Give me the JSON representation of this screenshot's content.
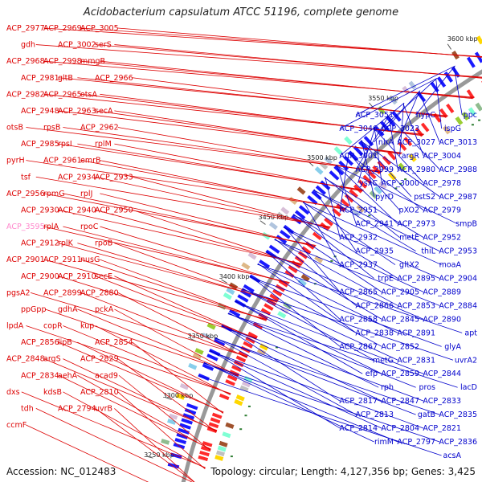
{
  "title": "Acidobacterium capsulatum ATCC 51196, complete genome",
  "accession": "Accession: NC_012483",
  "summary": "Topology: circular; Length: 4,127,356 bp; Genes: 3,425",
  "colors": {
    "left_labels": "#dd0000",
    "right_labels": "#0000cc",
    "forward_genes": "#ff2a2a",
    "reverse_genes": "#1a1aff",
    "backbone": "#999999",
    "highlight_label": "#ff88cc",
    "gc_skew": "#2e7d32"
  },
  "ticks": [
    "3600 kbp",
    "3550 kbp",
    "3500 kbp",
    "3450 kbp",
    "3400 kbp",
    "3350 kbp",
    "3300 kbp",
    "3250 kbp"
  ],
  "left_labels": [
    "ACP_2977",
    "ACP_2969",
    "ACP_3005",
    "gdh",
    "ACP_3002",
    "serS",
    "ACP_2968",
    "ACP_2998",
    "mmgB",
    "ACP_2981",
    "gltB",
    "ACP_2966",
    "ACP_2982",
    "ACP_2965",
    "otsA",
    "ACP_2948",
    "ACP_2963",
    "secA",
    "otsB",
    "rpsB",
    "ACP_2962",
    "ACP_2985",
    "rpsI",
    "rplM",
    "pyrH",
    "ACP_2961",
    "emrB",
    "tsf",
    "ACP_2934",
    "ACP_2933",
    "ACP_2956",
    "rpmG",
    "rplJ",
    "ACP_2930",
    "ACP_2940",
    "ACP_2950",
    "ACP_3595",
    "rplA",
    "rpoC",
    "ACP_2912",
    "rplK",
    "rpoB",
    "ACP_2901",
    "ACP_2911",
    "nusG",
    "ACP_2900",
    "ACP_2910",
    "secE",
    "pgsA2",
    "ACP_2899",
    "ACP_2880",
    "ppGpp",
    "gdhA",
    "pckA",
    "lpdA",
    "copR",
    "kup",
    "ACP_2856",
    "lipB",
    "ACP_2854",
    "ACP_2848",
    "argS",
    "ACP_2829",
    "ACP_2834",
    "aehA",
    "acad9",
    "dxs",
    "kdsB",
    "ACP_2810",
    "tdh",
    "ACP_2794",
    "uvrB",
    "ccmF"
  ],
  "right_labels": [
    "ppc",
    "hypC",
    "ACP_3051",
    "ispG",
    "ACP_3023",
    "ACP_3046",
    "ACP_3013",
    "ACP_3027",
    "nirA",
    "ACP_3004",
    "argR",
    "ACP_3001",
    "ACP_2988",
    "ACP_2980",
    "ACP_2999",
    "ACP_2978",
    "ACP_3000",
    "ysxC",
    "ACP_2987",
    "pstS2",
    "pyrD",
    "ACP_2979",
    "pXO2",
    "ACP_2951",
    "smpB",
    "ACP_2973",
    "ACP_2941",
    "ACP_2952",
    "metE",
    "ACP_2932",
    "ACP_2953",
    "thiL",
    "ACP_2935",
    "moaA",
    "gltX2",
    "ACP_2937",
    "ACP_2904",
    "ACP_2895",
    "trpE",
    "ACP_2889",
    "ACP_2905",
    "ACP_2865",
    "ACP_2884",
    "ACP_2853",
    "ACP_2866",
    "ACP_2890",
    "ACP_2845",
    "ACP_2858",
    "apt",
    "ACP_2891",
    "ACP_2838",
    "glyA",
    "ACP_2852",
    "ACP_2867",
    "uvrA2",
    "ACP_2831",
    "metG",
    "ACP_2844",
    "ACP_2859",
    "efp",
    "lacD",
    "pros",
    "rph",
    "ACP_2833",
    "ACP_2847",
    "ACP_2817",
    "ACP_2835",
    "gatB",
    "ACP_2813",
    "ACP_2821",
    "ACP_2804",
    "ACP_2814",
    "ACP_2836",
    "ACP_2797",
    "rimM",
    "acsA"
  ]
}
